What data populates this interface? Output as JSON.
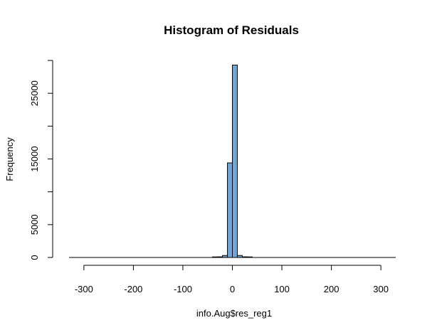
{
  "chart_data": {
    "type": "bar",
    "title": "Histogram of Residuals",
    "xlabel": "info.Aug$res_reg1",
    "ylabel": "Frequency",
    "xlim": [
      -330,
      330
    ],
    "ylim": [
      0,
      29500
    ],
    "x_ticks": [
      -300,
      -200,
      -100,
      0,
      100,
      200,
      300
    ],
    "x_tick_labels": [
      "-300",
      "-200",
      "-100",
      "0",
      "100",
      "200",
      "300"
    ],
    "y_ticks": [
      0,
      5000,
      15000,
      25000
    ],
    "y_tick_labels": [
      "0",
      "5000",
      "15000",
      "25000"
    ],
    "y_axis_range": [
      0,
      30000
    ],
    "grid": false,
    "bar_color": "#6fa8d6",
    "bins": [
      {
        "x0": -40,
        "x1": -30,
        "value": 50
      },
      {
        "x0": -30,
        "x1": -20,
        "value": 100
      },
      {
        "x0": -20,
        "x1": -10,
        "value": 300
      },
      {
        "x0": -10,
        "x1": 0,
        "value": 14400
      },
      {
        "x0": 0,
        "x1": 10,
        "value": 29300
      },
      {
        "x0": 10,
        "x1": 20,
        "value": 300
      },
      {
        "x0": 20,
        "x1": 30,
        "value": 100
      },
      {
        "x0": 30,
        "x1": 40,
        "value": 20
      }
    ]
  }
}
